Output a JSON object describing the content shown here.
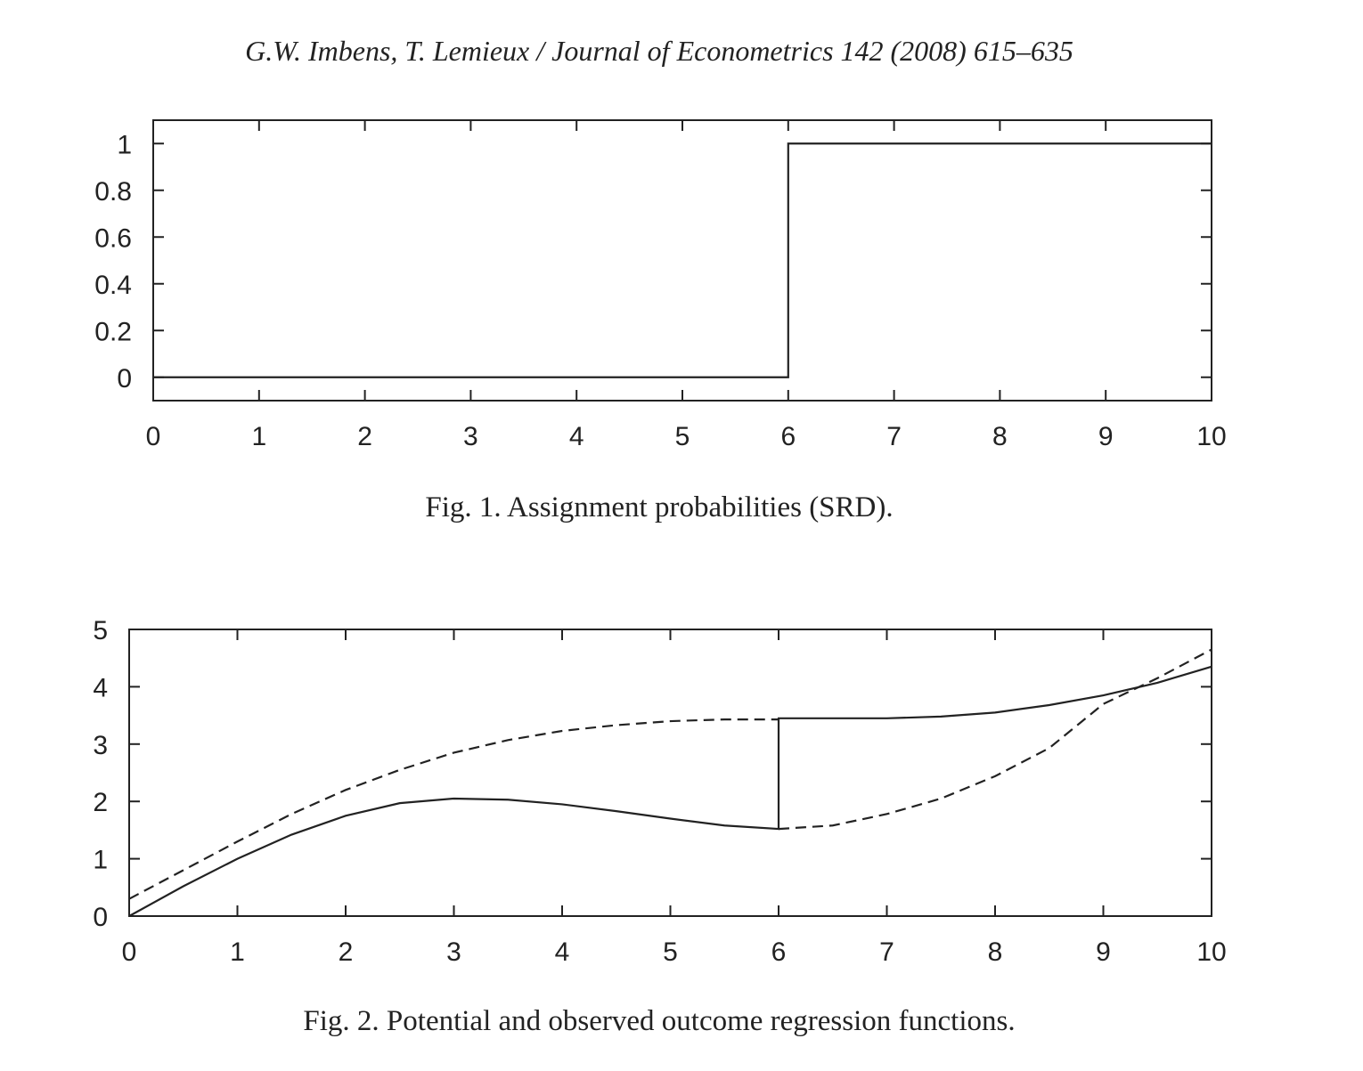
{
  "header": "G.W. Imbens, T. Lemieux / Journal of Econometrics 142 (2008) 615–635",
  "chart_data": [
    {
      "type": "line",
      "title": "Fig. 1. Assignment probabilities (SRD).",
      "xlim": [
        0,
        10
      ],
      "xticks": [
        0,
        1,
        2,
        3,
        4,
        5,
        6,
        7,
        8,
        9,
        10
      ],
      "ylim": [
        -0.1,
        1.1
      ],
      "yticks": [
        0,
        0.2,
        0.4,
        0.6,
        0.8,
        1
      ],
      "series": [
        {
          "color": "#222222",
          "linestyle": "solid",
          "x": [
            0,
            6,
            6,
            10
          ],
          "values": [
            0,
            0,
            1,
            1
          ]
        }
      ]
    },
    {
      "type": "line",
      "title": "Fig. 2. Potential and observed outcome regression functions.",
      "xlim": [
        0,
        10
      ],
      "xticks": [
        0,
        1,
        2,
        3,
        4,
        5,
        6,
        7,
        8,
        9,
        10
      ],
      "ylim": [
        0,
        5
      ],
      "yticks": [
        0,
        1,
        2,
        3,
        4,
        5
      ],
      "series": [
        {
          "color": "#222222",
          "linestyle": "solid",
          "x": [
            0,
            0.5,
            1,
            1.5,
            2,
            2.5,
            3,
            3.5,
            4,
            4.5,
            5,
            5.5,
            6,
            6,
            6.5,
            7,
            7.5,
            8,
            8.5,
            9,
            9.5,
            10
          ],
          "values": [
            0,
            0.52,
            1.0,
            1.42,
            1.75,
            1.97,
            2.05,
            2.03,
            1.95,
            1.83,
            1.7,
            1.58,
            1.52,
            3.45,
            3.45,
            3.45,
            3.48,
            3.55,
            3.68,
            3.85,
            4.07,
            4.35
          ]
        },
        {
          "color": "#222222",
          "linestyle": "dashed",
          "x": [
            0,
            0.5,
            1,
            1.5,
            2,
            2.5,
            3,
            3.5,
            4,
            4.5,
            5,
            5.5,
            6,
            6,
            6,
            6.5,
            7,
            7.5,
            8,
            8.5,
            9,
            9.5,
            10
          ],
          "values": [
            0.3,
            0.8,
            1.3,
            1.78,
            2.2,
            2.55,
            2.85,
            3.07,
            3.23,
            3.33,
            3.4,
            3.43,
            3.43,
            null,
            1.52,
            1.58,
            1.78,
            2.05,
            2.44,
            2.93,
            3.7,
            4.15,
            4.65
          ]
        }
      ]
    }
  ]
}
